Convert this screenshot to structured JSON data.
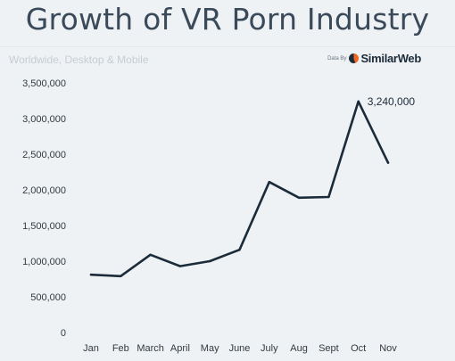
{
  "header": {
    "title": "Growth of VR Porn Industry",
    "subtitle": "Worldwide, Desktop & Mobile",
    "source_prefix": "Data By",
    "source_brand": "SimilarWeb"
  },
  "colors": {
    "line": "#1b2b3a",
    "background": "#eef2f4",
    "logo_accent": "#f26522"
  },
  "chart_data": {
    "type": "line",
    "categories": [
      "Jan",
      "Feb",
      "March",
      "April",
      "May",
      "June",
      "July",
      "Aug",
      "Sept",
      "Oct",
      "Nov"
    ],
    "series": [
      {
        "values": [
          810000,
          790000,
          1090000,
          930000,
          1000000,
          1160000,
          2110000,
          1890000,
          1900000,
          3240000,
          2380000
        ]
      }
    ],
    "ylim": [
      0,
      3500000
    ],
    "yticks": [
      0,
      500000,
      1000000,
      1500000,
      2000000,
      2500000,
      3000000,
      3500000
    ],
    "ytick_labels": [
      "0",
      "500,000",
      "1,000,000",
      "1,500,000",
      "2,000,000",
      "2,500,000",
      "3,000,000",
      "3,500,000"
    ],
    "annotations": [
      {
        "category": "Oct",
        "text": "3,240,000"
      }
    ],
    "grid": false,
    "title": "Growth of VR Porn Industry",
    "xlabel": "",
    "ylabel": ""
  }
}
